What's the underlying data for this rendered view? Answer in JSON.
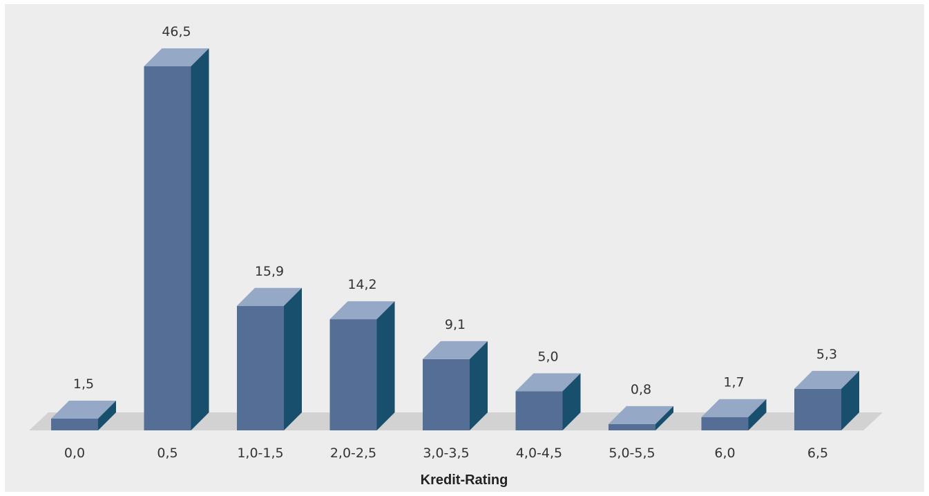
{
  "chart_data": {
    "type": "bar",
    "categories": [
      "0,0",
      "0,5",
      "1,0-1,5",
      "2,0-2,5",
      "3,0-3,5",
      "4,0-4,5",
      "5,0-5,5",
      "6,0",
      "6,5"
    ],
    "values": [
      1.5,
      46.5,
      15.9,
      14.2,
      9.1,
      5.0,
      0.8,
      1.7,
      5.3
    ],
    "value_labels": [
      "1,5",
      "46,5",
      "15,9",
      "14,2",
      "9,1",
      "5,0",
      "0,8",
      "1,7",
      "5,3"
    ],
    "xlabel": "Kredit-Rating",
    "ylabel": "",
    "ylim": [
      0,
      46.5
    ],
    "grid": false,
    "legend": "none",
    "style": "3d-bar",
    "colors": {
      "panel_background": "#ededed",
      "floor": "#d2d2d2",
      "bar_front": "#546e96",
      "bar_top": "#95a8c5",
      "bar_side": "#174f6d",
      "text": "#333333"
    }
  }
}
